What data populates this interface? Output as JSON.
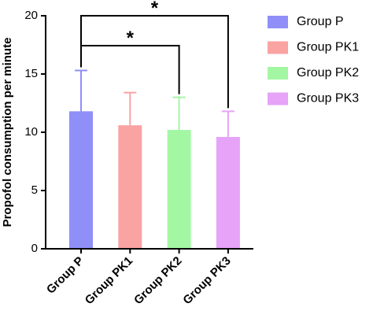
{
  "chart_data": {
    "type": "bar",
    "y_label": "Propofol consumption per minute",
    "categories": [
      "Group P",
      "Group PK1",
      "Group PK2",
      "Group PK3"
    ],
    "values": [
      11.8,
      10.6,
      10.2,
      9.6
    ],
    "errors": [
      3.5,
      2.8,
      2.8,
      2.2
    ],
    "colors": [
      "#8f8ff7",
      "#f9a3a3",
      "#a3f7a3",
      "#e6a3f7"
    ],
    "ylim": [
      0,
      20
    ],
    "yticks": [
      0,
      5,
      10,
      15,
      20
    ],
    "comparisons": [
      {
        "from": 0,
        "to": 3,
        "label": "*"
      },
      {
        "from": 0,
        "to": 2,
        "label": "*"
      }
    ],
    "legend": "right"
  }
}
